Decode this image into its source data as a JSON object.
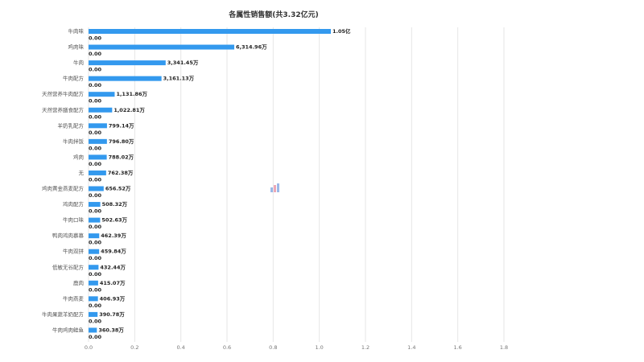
{
  "chart_data": {
    "type": "bar",
    "orientation": "horizontal",
    "title": "各属性销售额(共3.32亿元)",
    "categories": [
      "牛肉味",
      "鸡肉味",
      "牛肉",
      "牛肉配方",
      "天然营养牛肉配方",
      "天然营养膳食配方",
      "羊奶乳配方",
      "牛肉拌饭",
      "鸡肉",
      "无",
      "鸡肉黄金燕麦配方",
      "鸡肉配方",
      "牛肉口味",
      "鸭肉鸡肉慕慕",
      "牛肉双拼",
      "低敏无谷配方",
      "鹿肉",
      "牛肉燕麦",
      "牛肉果蔬羊奶配方",
      "牛肉鸡肉鲑鱼"
    ],
    "series": [
      {
        "values": [
          1.05,
          0.631496,
          0.334145,
          0.316113,
          0.113186,
          0.102281,
          0.079914,
          0.07968,
          0.078802,
          0.076238,
          0.065652,
          0.050832,
          0.050263,
          0.046239,
          0.045984,
          0.043244,
          0.041507,
          0.040693,
          0.039078,
          0.036038
        ],
        "labels": [
          "1.05亿",
          "6,314.96万",
          "3,341.45万",
          "3,161.13万",
          "1,131.86万",
          "1,022.81万",
          "799.14万",
          "796.80万",
          "788.02万",
          "762.38万",
          "656.52万",
          "508.32万",
          "502.63万",
          "462.39万",
          "459.84万",
          "432.44万",
          "415.07万",
          "406.93万",
          "390.78万",
          "360.38万"
        ],
        "color": "#3399ee"
      },
      {
        "values": [
          0,
          0,
          0,
          0,
          0,
          0,
          0,
          0,
          0,
          0,
          0,
          0,
          0,
          0,
          0,
          0,
          0,
          0,
          0,
          0
        ],
        "labels": [
          "0.00",
          "0.00",
          "0.00",
          "0.00",
          "0.00",
          "0.00",
          "0.00",
          "0.00",
          "0.00",
          "0.00",
          "0.00",
          "0.00",
          "0.00",
          "0.00",
          "0.00",
          "0.00",
          "0.00",
          "0.00",
          "0.00",
          "0.00"
        ],
        "color": "#3399ee"
      }
    ],
    "xlim": [
      0,
      1.8
    ],
    "x_ticks": [
      "0.0",
      "0.2",
      "0.4",
      "0.6",
      "0.8",
      "1.0",
      "1.2",
      "1.4",
      "1.6",
      "1.8"
    ],
    "grid": true
  }
}
